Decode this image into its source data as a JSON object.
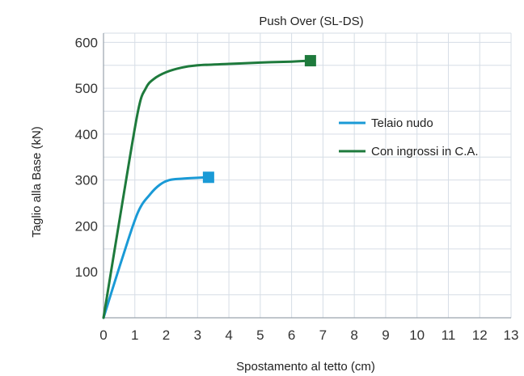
{
  "chart_data": {
    "type": "line",
    "title": "Push Over (SL-DS)",
    "xlabel": "Spostamento al tetto (cm)",
    "ylabel": "Taglio alla Base (kN)",
    "xlim": [
      0,
      13
    ],
    "ylim": [
      0,
      620
    ],
    "x_ticks": [
      "0",
      "1",
      "2",
      "3",
      "4",
      "5",
      "6",
      "7",
      "8",
      "9",
      "10",
      "11",
      "12",
      "13"
    ],
    "y_ticks": [
      "100",
      "200",
      "300",
      "400",
      "500",
      "600"
    ],
    "grid": true,
    "legend_position": "right",
    "series": [
      {
        "name": "Telaio nudo",
        "color": "#1a9ad6",
        "marker": "square",
        "x": [
          0,
          0.6,
          1.1,
          1.5,
          1.8,
          2.1,
          2.5,
          3.0,
          3.35
        ],
        "y": [
          0,
          130,
          230,
          270,
          290,
          300,
          303,
          305,
          306
        ]
      },
      {
        "name": "Con ingrossi in C.A.",
        "color": "#1e7a3c",
        "marker": "square",
        "x": [
          0,
          0.6,
          1.1,
          1.35,
          1.6,
          2.0,
          2.5,
          3.0,
          4.0,
          5.0,
          6.0,
          6.6
        ],
        "y": [
          0,
          250,
          450,
          500,
          520,
          535,
          545,
          550,
          553,
          556,
          558,
          560
        ]
      }
    ]
  }
}
